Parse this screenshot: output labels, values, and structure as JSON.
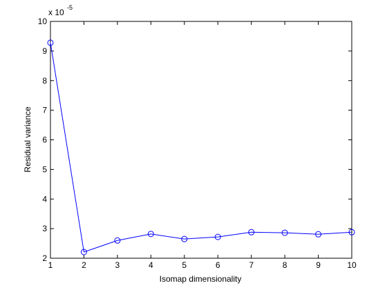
{
  "chart_data": {
    "type": "line",
    "xlabel": "Isomap dimensionality",
    "ylabel": "Residual variance",
    "y_multiplier": {
      "base": "x 10",
      "exponent": -5
    },
    "x": [
      1,
      2,
      3,
      4,
      5,
      6,
      7,
      8,
      9,
      10
    ],
    "values": [
      9.28,
      2.21,
      2.6,
      2.82,
      2.65,
      2.72,
      2.88,
      2.86,
      2.81,
      2.88
    ],
    "color": "#0000ff",
    "xlim": [
      1,
      10
    ],
    "ylim": [
      2,
      10
    ],
    "xticks": [
      1,
      2,
      3,
      4,
      5,
      6,
      7,
      8,
      9,
      10
    ],
    "yticks": [
      2,
      3,
      4,
      5,
      6,
      7,
      8,
      9,
      10
    ]
  }
}
